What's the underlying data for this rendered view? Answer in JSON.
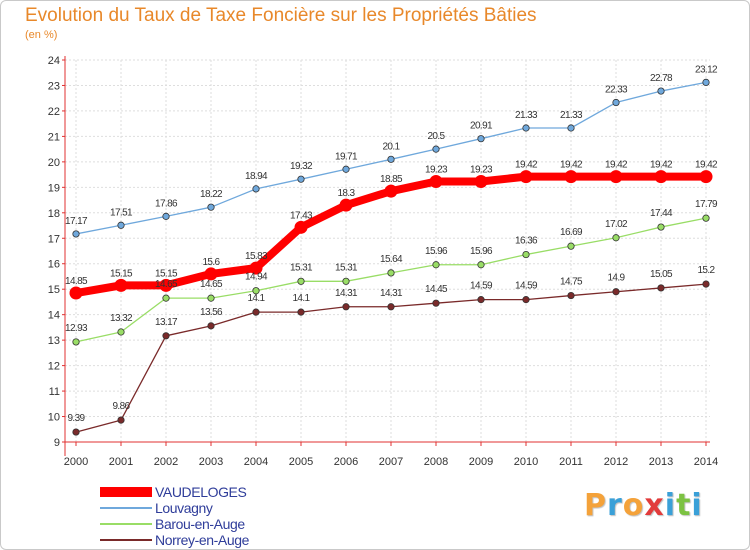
{
  "chart_data": {
    "type": "line",
    "title": "Evolution du Taux de Taxe Foncière sur les Propriétés Bâties",
    "unit": "(en %)",
    "xlabel": "",
    "ylabel": "",
    "ylim": [
      9,
      24
    ],
    "yticks": [
      "9",
      "10",
      "11",
      "12",
      "13",
      "14",
      "15",
      "16",
      "17",
      "18",
      "19",
      "20",
      "21",
      "22",
      "23",
      "24"
    ],
    "categories": [
      "2000",
      "2001",
      "2002",
      "2003",
      "2004",
      "2005",
      "2006",
      "2007",
      "2008",
      "2009",
      "2010",
      "2011",
      "2012",
      "2013",
      "2014"
    ],
    "series": [
      {
        "name": "VAUDELOGES",
        "color": "#ff0000",
        "thick": true,
        "values": [
          14.85,
          15.15,
          15.15,
          15.6,
          15.83,
          17.43,
          18.3,
          18.85,
          19.23,
          19.23,
          19.42,
          19.42,
          19.42,
          19.42,
          19.42
        ],
        "labels": [
          "14.85",
          "15.15",
          "15.15",
          "15.6",
          "15.83",
          "17.43",
          "18.3",
          "18.85",
          "19.23",
          "19.23",
          "19.42",
          "19.42",
          "19.42",
          "19.42",
          "19.42"
        ]
      },
      {
        "name": "Louvagny",
        "color": "#6fa8dc",
        "values": [
          17.17,
          17.51,
          17.86,
          18.22,
          18.94,
          19.32,
          19.71,
          20.1,
          20.5,
          20.91,
          21.33,
          21.33,
          22.33,
          22.78,
          23.12
        ],
        "labels": [
          "17.17",
          "17.51",
          "17.86",
          "18.22",
          "18.94",
          "19.32",
          "19.71",
          "20.1",
          "20.5",
          "20.91",
          "21.33",
          "21.33",
          "22.33",
          "22.78",
          "23.12"
        ]
      },
      {
        "name": "Barou-en-Auge",
        "color": "#99dd66",
        "values": [
          12.93,
          13.32,
          14.65,
          14.65,
          14.94,
          15.31,
          15.31,
          15.64,
          15.96,
          15.96,
          16.36,
          16.69,
          17.02,
          17.44,
          17.79
        ],
        "labels": [
          "12.93",
          "13.32",
          "14.65",
          "14.65",
          "14.94",
          "15.31",
          "15.31",
          "15.64",
          "15.96",
          "15.96",
          "16.36",
          "16.69",
          "17.02",
          "17.44",
          "17.79"
        ]
      },
      {
        "name": "Norrey-en-Auge",
        "color": "#7a2a2a",
        "values": [
          9.39,
          9.86,
          13.17,
          13.56,
          14.1,
          14.1,
          14.31,
          14.31,
          14.45,
          14.59,
          14.59,
          14.75,
          14.9,
          15.05,
          15.2
        ],
        "labels": [
          "9.39",
          "9.86",
          "13.17",
          "13.56",
          "14.1",
          "14.1",
          "14.31",
          "14.31",
          "14.45",
          "14.59",
          "14.59",
          "14.75",
          "14.9",
          "15.05",
          "15.2"
        ]
      }
    ]
  },
  "legend": [
    {
      "label": "VAUDELOGES",
      "color": "#ff0000"
    },
    {
      "label": "Louvagny",
      "color": "#6fa8dc"
    },
    {
      "label": "Barou-en-Auge",
      "color": "#99dd66"
    },
    {
      "label": "Norrey-en-Auge",
      "color": "#7a2a2a"
    }
  ],
  "logo": {
    "letters": [
      "P",
      "r",
      "o",
      "x",
      "i",
      "t",
      "i"
    ],
    "colors": [
      "#f4a23a",
      "#3aa0d8",
      "#f4a23a",
      "#e23b3b",
      "#3aa0d8",
      "#7cc242",
      "#3aa0d8"
    ]
  }
}
